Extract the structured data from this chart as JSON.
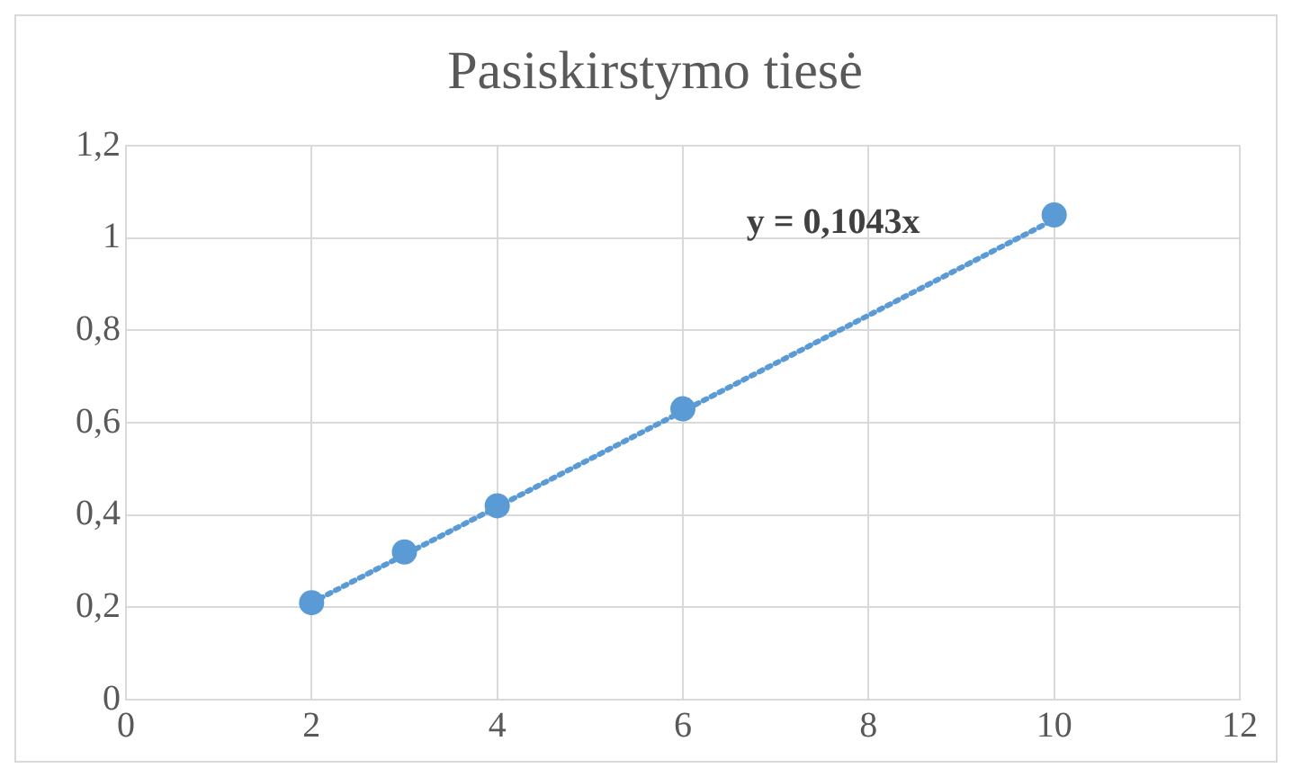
{
  "chart_data": {
    "type": "scatter",
    "title": "Pasiskirstymo tiesė",
    "x": [
      2,
      3,
      4,
      6,
      10
    ],
    "series": [
      {
        "color": "#5b9bd5",
        "values": [
          0.21,
          0.32,
          0.42,
          0.63,
          1.05
        ],
        "marker": "circle"
      },
      {
        "type": "line",
        "x": [
          2,
          10
        ],
        "values": [
          0.21,
          1.04
        ],
        "color": "#5b9bd5",
        "line_style": "dotted",
        "marker": "none"
      }
    ],
    "xlim": [
      0,
      12
    ],
    "xticks": [
      0,
      2,
      4,
      6,
      8,
      10,
      12
    ],
    "ylim": [
      0,
      1.2
    ],
    "yticks": [
      {
        "value": 0,
        "label": "0"
      },
      {
        "value": 0.2,
        "label": "0,2"
      },
      {
        "value": 0.4,
        "label": "0,4"
      },
      {
        "value": 0.6,
        "label": "0,6"
      },
      {
        "value": 0.8,
        "label": "0,8"
      },
      {
        "value": 1,
        "label": "1"
      },
      {
        "value": 1.2,
        "label": "1,2"
      }
    ],
    "grid": true,
    "legend": false,
    "annotations": [
      "y = 0,1043x"
    ]
  }
}
